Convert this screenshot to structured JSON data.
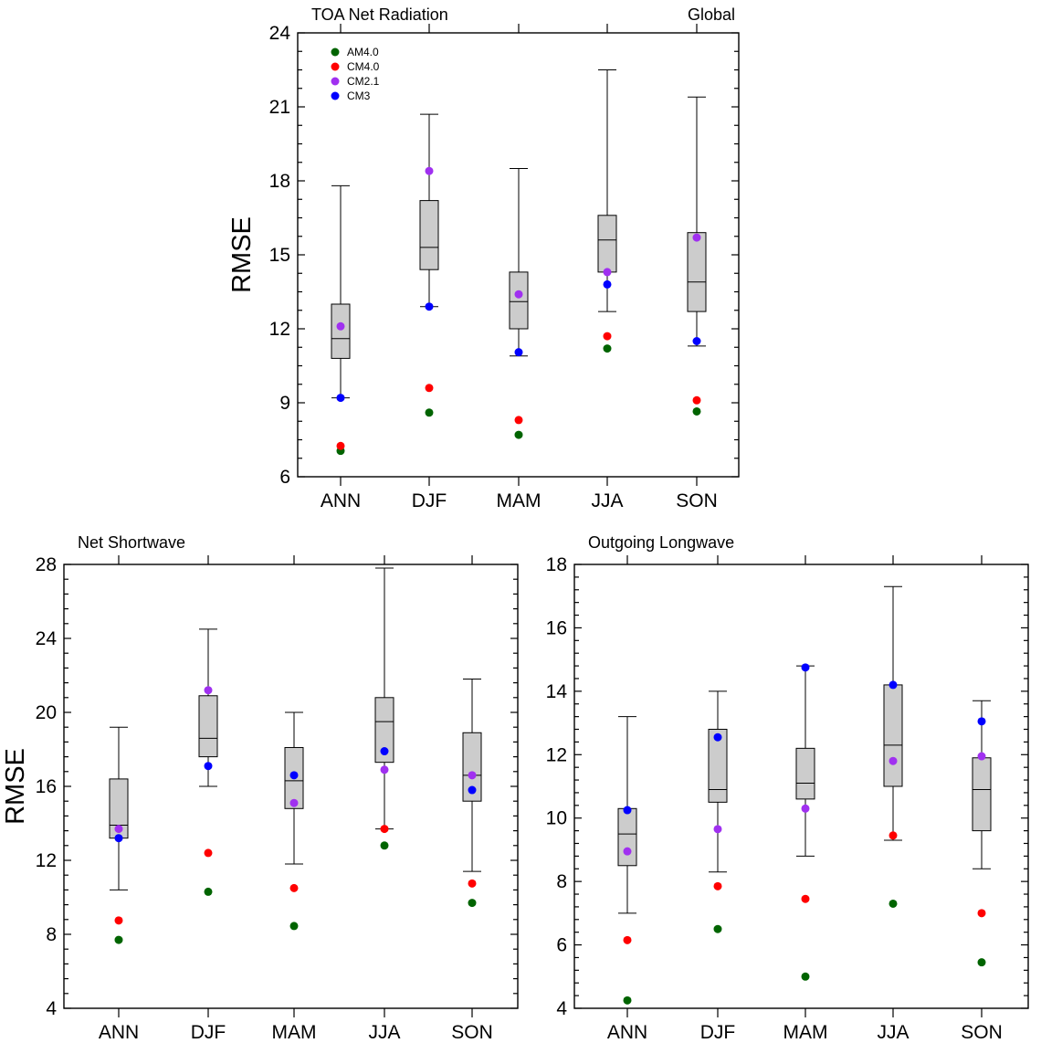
{
  "legend": {
    "entries": [
      {
        "label": "AM4.0",
        "color": "#006400"
      },
      {
        "label": "CM4.0",
        "color": "#ff0000"
      },
      {
        "label": "CM2.1",
        "color": "#a030f0"
      },
      {
        "label": "CM3",
        "color": "#0000ff"
      }
    ]
  },
  "chart_data": [
    {
      "type": "box",
      "title": "TOA Net Radiation",
      "subtitle": "Global",
      "ylabel": "RMSE",
      "ylim": [
        6,
        24
      ],
      "yticks": [
        6,
        9,
        12,
        15,
        18,
        21,
        24
      ],
      "categories": [
        "ANN",
        "DJF",
        "MAM",
        "JJA",
        "SON"
      ],
      "boxes": [
        {
          "min": 9.2,
          "q1": 10.8,
          "median": 11.6,
          "q3": 13.0,
          "max": 17.8
        },
        {
          "min": 12.9,
          "q1": 14.4,
          "median": 15.3,
          "q3": 17.2,
          "max": 20.7
        },
        {
          "min": 10.9,
          "q1": 12.0,
          "median": 13.1,
          "q3": 14.3,
          "max": 18.5
        },
        {
          "min": 12.7,
          "q1": 14.3,
          "median": 15.6,
          "q3": 16.6,
          "max": 22.5
        },
        {
          "min": 11.3,
          "q1": 12.7,
          "median": 13.9,
          "q3": 15.9,
          "max": 21.4
        }
      ],
      "series": [
        {
          "name": "AM4.0",
          "values": [
            7.05,
            8.6,
            7.7,
            11.2,
            8.65
          ]
        },
        {
          "name": "CM4.0",
          "values": [
            7.25,
            9.6,
            8.3,
            11.7,
            9.1
          ]
        },
        {
          "name": "CM2.1",
          "values": [
            12.1,
            18.4,
            13.4,
            14.3,
            15.7
          ]
        },
        {
          "name": "CM3",
          "values": [
            9.2,
            12.9,
            11.05,
            13.8,
            11.5
          ]
        }
      ]
    },
    {
      "type": "box",
      "title": "Net Shortwave",
      "subtitle": "",
      "ylabel": "RMSE",
      "ylim": [
        4,
        28
      ],
      "yticks": [
        4,
        8,
        12,
        16,
        20,
        24,
        28
      ],
      "categories": [
        "ANN",
        "DJF",
        "MAM",
        "JJA",
        "SON"
      ],
      "boxes": [
        {
          "min": 10.4,
          "q1": 13.2,
          "median": 13.9,
          "q3": 16.4,
          "max": 19.2
        },
        {
          "min": 16.0,
          "q1": 17.6,
          "median": 18.6,
          "q3": 20.9,
          "max": 24.5
        },
        {
          "min": 11.8,
          "q1": 14.8,
          "median": 16.3,
          "q3": 18.1,
          "max": 20.0
        },
        {
          "min": 13.7,
          "q1": 17.3,
          "median": 19.5,
          "q3": 20.8,
          "max": 27.8
        },
        {
          "min": 11.4,
          "q1": 15.2,
          "median": 16.6,
          "q3": 18.9,
          "max": 21.8
        }
      ],
      "series": [
        {
          "name": "AM4.0",
          "values": [
            7.7,
            10.3,
            8.45,
            12.8,
            9.7
          ]
        },
        {
          "name": "CM4.0",
          "values": [
            8.75,
            12.4,
            10.5,
            13.7,
            10.75
          ]
        },
        {
          "name": "CM2.1",
          "values": [
            13.7,
            21.2,
            15.1,
            16.9,
            16.6
          ]
        },
        {
          "name": "CM3",
          "values": [
            13.2,
            17.1,
            16.6,
            17.9,
            15.8
          ]
        }
      ]
    },
    {
      "type": "box",
      "title": "Outgoing Longwave",
      "subtitle": "",
      "ylabel": "",
      "ylim": [
        4,
        18
      ],
      "yticks": [
        4,
        6,
        8,
        10,
        12,
        14,
        16,
        18
      ],
      "categories": [
        "ANN",
        "DJF",
        "MAM",
        "JJA",
        "SON"
      ],
      "boxes": [
        {
          "min": 7.0,
          "q1": 8.5,
          "median": 9.5,
          "q3": 10.3,
          "max": 13.2
        },
        {
          "min": 8.3,
          "q1": 10.5,
          "median": 10.9,
          "q3": 12.8,
          "max": 14.0
        },
        {
          "min": 8.8,
          "q1": 10.6,
          "median": 11.1,
          "q3": 12.2,
          "max": 14.8
        },
        {
          "min": 9.3,
          "q1": 11.0,
          "median": 12.3,
          "q3": 14.2,
          "max": 17.3
        },
        {
          "min": 8.4,
          "q1": 9.6,
          "median": 10.9,
          "q3": 11.9,
          "max": 13.7
        }
      ],
      "series": [
        {
          "name": "AM4.0",
          "values": [
            4.25,
            6.5,
            5.0,
            7.3,
            5.45
          ]
        },
        {
          "name": "CM4.0",
          "values": [
            6.15,
            7.85,
            7.45,
            9.45,
            7.0
          ]
        },
        {
          "name": "CM2.1",
          "values": [
            8.95,
            9.65,
            10.3,
            11.8,
            11.95
          ]
        },
        {
          "name": "CM3",
          "values": [
            10.25,
            12.55,
            14.75,
            14.2,
            13.05
          ]
        }
      ]
    }
  ]
}
